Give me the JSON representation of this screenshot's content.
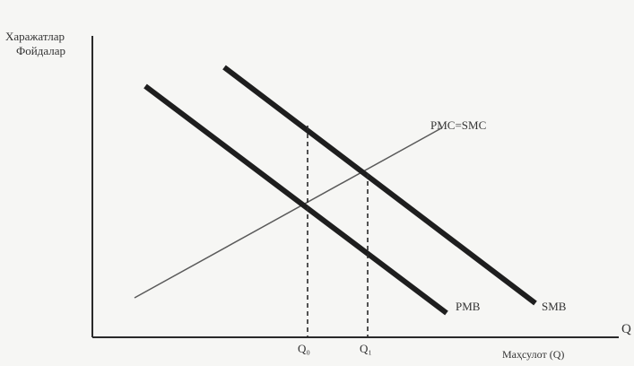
{
  "diagram": {
    "y_axis_label_line1": "Харажатлар",
    "y_axis_label_line2": "Фойдалар",
    "x_axis_label": "Маҳсулот (Q)",
    "x_axis_end_label": "Q",
    "curve_labels": {
      "pmc_smc": "PMC=SMC",
      "pmb": "PMB",
      "smb": "SMB"
    },
    "tick_labels": {
      "q_private": "Q₀",
      "q_social": "Q₁"
    },
    "colors": {
      "axis": "#2a2a2a",
      "thick_line": "#1e1e1e",
      "thin_line": "#5a5a5a",
      "dashed": "#2a2a2a",
      "background": "#f6f6f4"
    }
  }
}
